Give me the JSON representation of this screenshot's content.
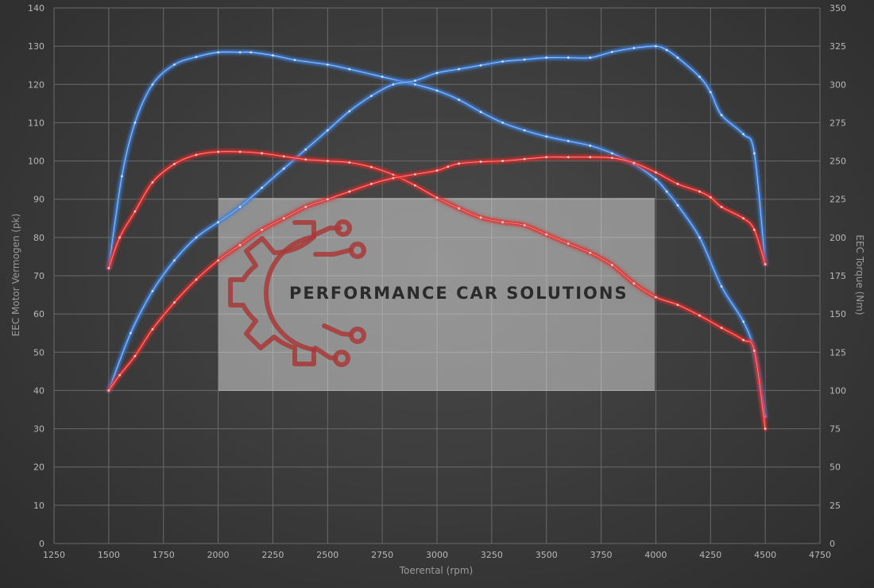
{
  "chart_data": {
    "type": "line",
    "xlabel": "Toerental (rpm)",
    "ylabel_left": "EEC Motor Vermogen (pk)",
    "ylabel_right": "EEC Torque (Nm)",
    "xlim": [
      1250,
      4750
    ],
    "ylim_left": [
      0,
      140
    ],
    "ylim_right": [
      0,
      350
    ],
    "x_ticks": [
      1250,
      1500,
      1750,
      2000,
      2250,
      2500,
      2750,
      3000,
      3250,
      3500,
      3750,
      4000,
      4250,
      4500,
      4750
    ],
    "y_ticks_left": [
      0,
      10,
      20,
      30,
      40,
      50,
      60,
      70,
      80,
      90,
      100,
      110,
      120,
      130,
      140
    ],
    "y_ticks_right": [
      0,
      25,
      50,
      75,
      100,
      125,
      150,
      175,
      200,
      225,
      250,
      275,
      300,
      325,
      350
    ],
    "grid": true,
    "series": [
      {
        "color": "#3d7fd9",
        "axis": "right",
        "x": [
          1500,
          1560,
          1620,
          1700,
          1800,
          1900,
          2000,
          2100,
          2150,
          2250,
          2350,
          2500,
          2600,
          2750,
          2900,
          3000,
          3100,
          3200,
          3300,
          3400,
          3500,
          3600,
          3700,
          3800,
          3900,
          4000,
          4050,
          4100,
          4200,
          4300,
          4400,
          4450,
          4500
        ],
        "values": [
          180,
          240,
          275,
          300,
          313,
          318,
          321,
          321,
          321,
          319,
          316,
          313,
          310,
          305,
          300,
          296,
          290,
          282,
          275,
          270,
          266,
          263,
          260,
          255,
          248,
          238,
          230,
          221,
          200,
          168,
          145,
          125,
          83
        ]
      },
      {
        "color": "#3d7fd9",
        "axis": "left",
        "x": [
          1500,
          1600,
          1700,
          1800,
          1900,
          2000,
          2100,
          2200,
          2300,
          2400,
          2500,
          2600,
          2700,
          2800,
          2900,
          3000,
          3100,
          3200,
          3300,
          3400,
          3500,
          3600,
          3700,
          3800,
          3900,
          4000,
          4050,
          4100,
          4200,
          4250,
          4300,
          4400,
          4450,
          4500
        ],
        "values": [
          40,
          55,
          66,
          74,
          80,
          84,
          88,
          93,
          98,
          103,
          108,
          113,
          117,
          120,
          121,
          123,
          124,
          125,
          126,
          126.5,
          127,
          127,
          127,
          128.5,
          129.5,
          130,
          129,
          127,
          122,
          118,
          112,
          107,
          102,
          73
        ]
      },
      {
        "color": "#e02a2a",
        "axis": "right",
        "x": [
          1500,
          1550,
          1620,
          1700,
          1800,
          1900,
          2000,
          2100,
          2200,
          2300,
          2400,
          2500,
          2600,
          2700,
          2800,
          2900,
          3000,
          3100,
          3200,
          3300,
          3400,
          3500,
          3600,
          3700,
          3800,
          3900,
          4000,
          4100,
          4200,
          4300,
          4400,
          4450,
          4500
        ],
        "values": [
          180,
          200,
          217,
          236,
          248,
          254,
          256,
          256,
          255,
          253,
          251,
          250,
          249,
          246,
          241,
          234,
          226,
          219,
          213,
          210,
          208,
          202,
          196,
          190,
          182,
          170,
          161,
          156,
          149,
          141,
          133,
          126,
          75
        ]
      },
      {
        "color": "#e02a2a",
        "axis": "left",
        "x": [
          1500,
          1550,
          1620,
          1700,
          1800,
          1900,
          2000,
          2100,
          2200,
          2300,
          2400,
          2500,
          2600,
          2700,
          2800,
          2900,
          3000,
          3050,
          3100,
          3200,
          3300,
          3400,
          3500,
          3600,
          3700,
          3800,
          3900,
          4000,
          4100,
          4200,
          4250,
          4300,
          4400,
          4450,
          4500
        ],
        "values": [
          40,
          44,
          49,
          56,
          63,
          69,
          74,
          78,
          82,
          85,
          88,
          90,
          92,
          94,
          95.5,
          96.5,
          97.5,
          98.5,
          99.3,
          99.8,
          100,
          100.5,
          101,
          101,
          101,
          100.8,
          99.5,
          97,
          94,
          92,
          90.5,
          88,
          85,
          82,
          73
        ]
      }
    ]
  },
  "brand": {
    "name": "PERFORMANCE CAR SOLUTIONS",
    "accent": "#a83a3a"
  },
  "colors": {
    "grid": "#6a6a6a",
    "tick_text": "#b8b8b8",
    "axis_text": "#9a9a9a"
  }
}
